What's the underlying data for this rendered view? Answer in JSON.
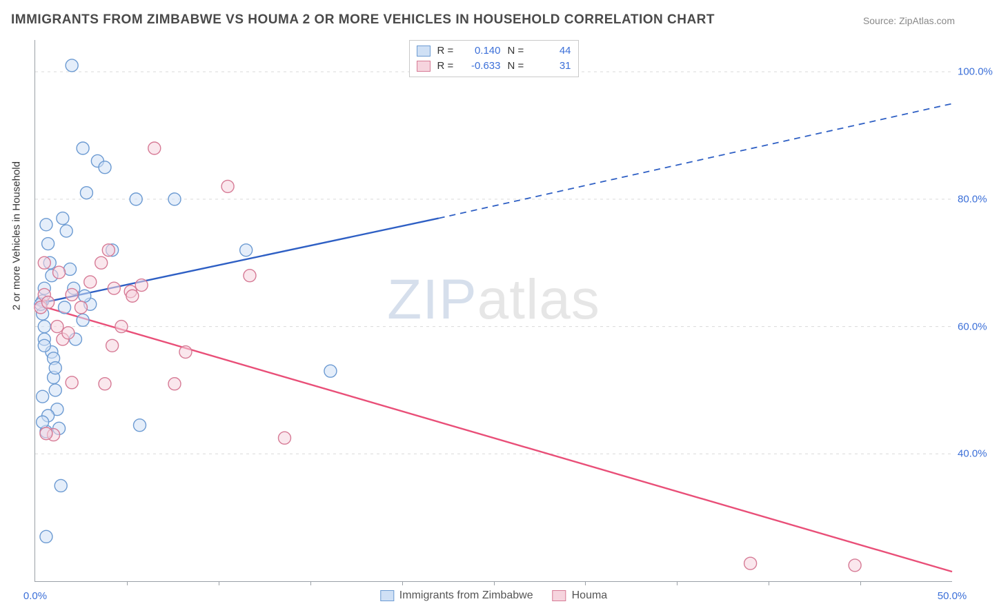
{
  "title": "IMMIGRANTS FROM ZIMBABWE VS HOUMA 2 OR MORE VEHICLES IN HOUSEHOLD CORRELATION CHART",
  "source": "Source: ZipAtlas.com",
  "ylabel": "2 or more Vehicles in Household",
  "watermark_zip": "ZIP",
  "watermark_atlas": "atlas",
  "series": {
    "a": {
      "name": "Immigrants from Zimbabwe",
      "color_fill": "#cfe0f5",
      "color_stroke": "#6b9ad2",
      "line_color": "#2e5fc4"
    },
    "b": {
      "name": "Houma",
      "color_fill": "#f6d4de",
      "color_stroke": "#d67a95",
      "line_color": "#e94f78"
    }
  },
  "top_legend": {
    "rows": [
      {
        "series": "a",
        "r_label": "R =",
        "r_value": "0.140",
        "n_label": "N =",
        "n_value": "44"
      },
      {
        "series": "b",
        "r_label": "R =",
        "r_value": "-0.633",
        "n_label": "N =",
        "n_value": "31"
      }
    ]
  },
  "axes": {
    "x": {
      "min": 0,
      "max": 50,
      "unit": "%",
      "ticks_minor": [
        5,
        10,
        15,
        20,
        25,
        30,
        35,
        40,
        45
      ],
      "labels": [
        {
          "v": 0,
          "t": "0.0%"
        },
        {
          "v": 50,
          "t": "50.0%"
        }
      ]
    },
    "y": {
      "min": 20,
      "max": 105,
      "unit": "%",
      "grid": [
        40,
        60,
        80,
        100
      ],
      "labels": [
        {
          "v": 40,
          "t": "40.0%"
        },
        {
          "v": 60,
          "t": "60.0%"
        },
        {
          "v": 80,
          "t": "80.0%"
        },
        {
          "v": 100,
          "t": "100.0%"
        }
      ]
    }
  },
  "trend_lines": {
    "a": {
      "x1": 0,
      "y1": 63.5,
      "x2_solid": 22,
      "y2_solid": 77,
      "x2": 50,
      "y2": 95,
      "style_after_solid": "dashed"
    },
    "b": {
      "x1": 0,
      "y1": 63.5,
      "x2": 50,
      "y2": 21.5
    }
  },
  "points_a": [
    {
      "x": 0.4,
      "y": 62
    },
    {
      "x": 0.4,
      "y": 64
    },
    {
      "x": 0.5,
      "y": 60
    },
    {
      "x": 0.5,
      "y": 66
    },
    {
      "x": 0.6,
      "y": 76
    },
    {
      "x": 0.7,
      "y": 73
    },
    {
      "x": 0.8,
      "y": 70
    },
    {
      "x": 0.9,
      "y": 68
    },
    {
      "x": 0.9,
      "y": 56
    },
    {
      "x": 1.0,
      "y": 55
    },
    {
      "x": 1.0,
      "y": 52
    },
    {
      "x": 1.1,
      "y": 53.5
    },
    {
      "x": 1.1,
      "y": 50
    },
    {
      "x": 1.2,
      "y": 47
    },
    {
      "x": 1.3,
      "y": 44
    },
    {
      "x": 0.6,
      "y": 43.5
    },
    {
      "x": 1.4,
      "y": 35
    },
    {
      "x": 0.6,
      "y": 27
    },
    {
      "x": 2.0,
      "y": 101
    },
    {
      "x": 2.6,
      "y": 88
    },
    {
      "x": 3.4,
      "y": 86
    },
    {
      "x": 3.8,
      "y": 85
    },
    {
      "x": 2.8,
      "y": 81
    },
    {
      "x": 4.2,
      "y": 72
    },
    {
      "x": 5.5,
      "y": 80
    },
    {
      "x": 7.6,
      "y": 80
    },
    {
      "x": 5.7,
      "y": 44.5
    },
    {
      "x": 11.5,
      "y": 72
    },
    {
      "x": 16.1,
      "y": 53
    },
    {
      "x": 1.5,
      "y": 77
    },
    {
      "x": 1.7,
      "y": 75
    },
    {
      "x": 1.9,
      "y": 69
    },
    {
      "x": 2.1,
      "y": 66
    },
    {
      "x": 0.5,
      "y": 58
    },
    {
      "x": 0.5,
      "y": 57
    },
    {
      "x": 0.7,
      "y": 46
    },
    {
      "x": 0.4,
      "y": 49
    },
    {
      "x": 0.4,
      "y": 45
    },
    {
      "x": 0.3,
      "y": 63.5
    },
    {
      "x": 2.6,
      "y": 61
    },
    {
      "x": 1.6,
      "y": 63
    },
    {
      "x": 2.2,
      "y": 58
    },
    {
      "x": 3.0,
      "y": 63.5
    },
    {
      "x": 2.7,
      "y": 64.8
    }
  ],
  "points_b": [
    {
      "x": 0.3,
      "y": 63
    },
    {
      "x": 0.5,
      "y": 65
    },
    {
      "x": 0.7,
      "y": 63.8
    },
    {
      "x": 0.5,
      "y": 70
    },
    {
      "x": 1.2,
      "y": 60
    },
    {
      "x": 1.5,
      "y": 58
    },
    {
      "x": 1.8,
      "y": 59
    },
    {
      "x": 2.0,
      "y": 65
    },
    {
      "x": 2.5,
      "y": 63
    },
    {
      "x": 3.0,
      "y": 67
    },
    {
      "x": 3.6,
      "y": 70
    },
    {
      "x": 4.0,
      "y": 72
    },
    {
      "x": 4.3,
      "y": 66
    },
    {
      "x": 5.2,
      "y": 65.5
    },
    {
      "x": 5.3,
      "y": 64.8
    },
    {
      "x": 5.8,
      "y": 66.5
    },
    {
      "x": 6.5,
      "y": 88
    },
    {
      "x": 10.5,
      "y": 82
    },
    {
      "x": 11.7,
      "y": 68
    },
    {
      "x": 3.8,
      "y": 51
    },
    {
      "x": 4.2,
      "y": 57
    },
    {
      "x": 8.2,
      "y": 56
    },
    {
      "x": 7.6,
      "y": 51
    },
    {
      "x": 13.6,
      "y": 42.5
    },
    {
      "x": 1.0,
      "y": 43
    },
    {
      "x": 0.6,
      "y": 43.2
    },
    {
      "x": 2.0,
      "y": 51.2
    },
    {
      "x": 39.0,
      "y": 22.8
    },
    {
      "x": 44.7,
      "y": 22.5
    },
    {
      "x": 1.3,
      "y": 68.5
    },
    {
      "x": 4.7,
      "y": 60
    }
  ],
  "marker_radius": 9,
  "marker_opacity_fill": 0.55,
  "line_width": 2.4,
  "background_color": "#ffffff",
  "grid_color": "#d9d9d9"
}
